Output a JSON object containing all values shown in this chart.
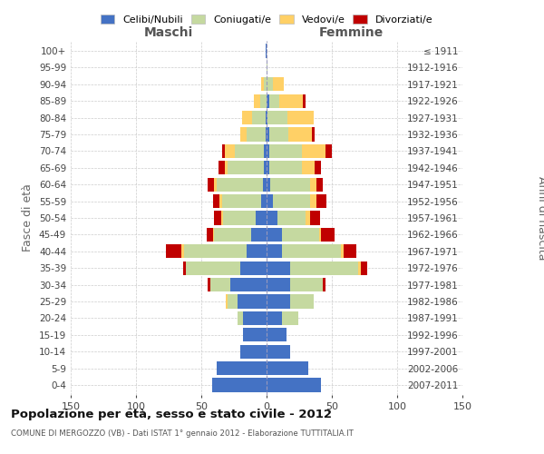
{
  "age_groups": [
    "0-4",
    "5-9",
    "10-14",
    "15-19",
    "20-24",
    "25-29",
    "30-34",
    "35-39",
    "40-44",
    "45-49",
    "50-54",
    "55-59",
    "60-64",
    "65-69",
    "70-74",
    "75-79",
    "80-84",
    "85-89",
    "90-94",
    "95-99",
    "100+"
  ],
  "birth_years": [
    "2007-2011",
    "2002-2006",
    "1997-2001",
    "1992-1996",
    "1987-1991",
    "1982-1986",
    "1977-1981",
    "1972-1976",
    "1967-1971",
    "1962-1966",
    "1957-1961",
    "1952-1956",
    "1947-1951",
    "1942-1946",
    "1937-1941",
    "1932-1936",
    "1927-1931",
    "1922-1926",
    "1917-1921",
    "1912-1916",
    "≤ 1911"
  ],
  "male_celibi": [
    42,
    38,
    20,
    18,
    18,
    22,
    28,
    20,
    15,
    12,
    8,
    4,
    3,
    2,
    2,
    1,
    1,
    0,
    0,
    0,
    1
  ],
  "male_coniugati": [
    0,
    0,
    0,
    0,
    4,
    8,
    15,
    42,
    48,
    28,
    25,
    30,
    35,
    28,
    22,
    14,
    10,
    5,
    2,
    0,
    0
  ],
  "male_vedovi": [
    0,
    0,
    0,
    0,
    0,
    1,
    0,
    0,
    2,
    1,
    2,
    2,
    2,
    2,
    8,
    5,
    8,
    5,
    2,
    0,
    0
  ],
  "male_divorziati": [
    0,
    0,
    0,
    0,
    0,
    0,
    2,
    2,
    12,
    5,
    5,
    5,
    5,
    5,
    2,
    0,
    0,
    0,
    0,
    0,
    0
  ],
  "female_nubili": [
    42,
    32,
    18,
    15,
    12,
    18,
    18,
    18,
    12,
    12,
    8,
    5,
    3,
    2,
    2,
    2,
    1,
    2,
    0,
    0,
    0
  ],
  "female_coniugate": [
    0,
    0,
    0,
    0,
    12,
    18,
    25,
    52,
    45,
    28,
    22,
    28,
    30,
    25,
    25,
    15,
    15,
    8,
    5,
    1,
    0
  ],
  "female_vedove": [
    0,
    0,
    0,
    0,
    0,
    0,
    0,
    2,
    2,
    2,
    3,
    5,
    5,
    10,
    18,
    18,
    20,
    18,
    8,
    0,
    0
  ],
  "female_divorziate": [
    0,
    0,
    0,
    0,
    0,
    0,
    2,
    5,
    10,
    10,
    8,
    8,
    5,
    5,
    5,
    2,
    0,
    2,
    0,
    0,
    0
  ],
  "color_celibi": "#4472C4",
  "color_coniugati": "#C5D9A0",
  "color_vedovi": "#FFD066",
  "color_divorziati": "#C00000",
  "xlim": 150,
  "title": "Popolazione per età, sesso e stato civile - 2012",
  "subtitle": "COMUNE DI MERGOZZO (VB) - Dati ISTAT 1° gennaio 2012 - Elaborazione TUTTITALIA.IT",
  "label_maschi": "Maschi",
  "label_femmine": "Femmine",
  "ylabel_left": "Fasce di età",
  "ylabel_right": "Anni di nascita",
  "bg_color": "#ffffff",
  "grid_color": "#cccccc",
  "legend_labels": [
    "Celibi/Nubili",
    "Coniugati/e",
    "Vedovi/e",
    "Divorziati/e"
  ]
}
